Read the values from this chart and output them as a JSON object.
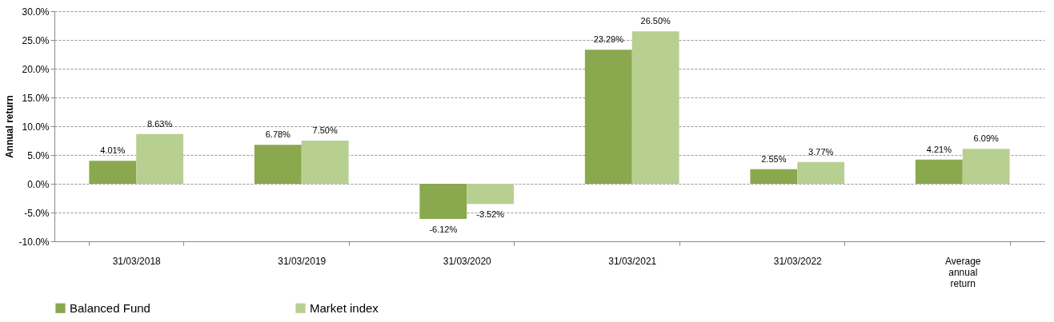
{
  "chart_data": {
    "type": "bar",
    "ylabel": "Annual return",
    "categories": [
      "31/03/2018",
      "31/03/2019",
      "31/03/2020",
      "31/03/2021",
      "31/03/2022",
      "Average annual return"
    ],
    "series": [
      {
        "name": "Balanced Fund",
        "color": "#8aa84e",
        "values": [
          4.01,
          6.78,
          -6.12,
          23.29,
          2.55,
          4.21
        ],
        "value_labels": [
          "4.01%",
          "6.78%",
          "-6.12%",
          "23.29%",
          "2.55%",
          "4.21%"
        ]
      },
      {
        "name": "Market index",
        "color": "#b8cf92",
        "values": [
          8.63,
          7.5,
          -3.52,
          26.5,
          3.77,
          6.09
        ],
        "value_labels": [
          "8.63%",
          "7.50%",
          "-3.52%",
          "26.50%",
          "3.77%",
          "6.09%"
        ]
      }
    ],
    "ylim": [
      -10,
      30
    ],
    "yticks": [
      {
        "value": -10,
        "label": "-10.0%"
      },
      {
        "value": -5,
        "label": "-5.0%"
      },
      {
        "value": 0,
        "label": "0.0%"
      },
      {
        "value": 5,
        "label": "5.0%"
      },
      {
        "value": 10,
        "label": "10.0%"
      },
      {
        "value": 15,
        "label": "15.0%"
      },
      {
        "value": 20,
        "label": "20.0%"
      },
      {
        "value": 25,
        "label": "25.0%"
      },
      {
        "value": 30,
        "label": "30.0%"
      }
    ],
    "grid": "y",
    "legend": "bottom"
  }
}
